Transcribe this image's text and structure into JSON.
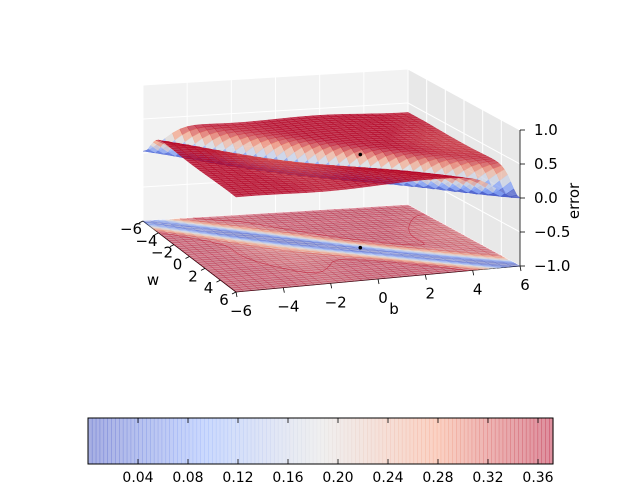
{
  "chart_data": {
    "type": "surface3d",
    "title": "",
    "xlabel": "w",
    "ylabel": "b",
    "zlabel": "error",
    "xlim": [
      -6,
      6
    ],
    "ylim": [
      -6,
      6
    ],
    "zlim": [
      -1.0,
      1.0
    ],
    "x_ticks": [
      "−6",
      "−4",
      "−2",
      "0",
      "2",
      "4",
      "6"
    ],
    "y_ticks": [
      "−6",
      "−4",
      "−2",
      "0",
      "2",
      "4",
      "6"
    ],
    "z_ticks": [
      "−1.0",
      "−0.5",
      "0.0",
      "0.5",
      "1.0"
    ],
    "surface_description": "error surface over w and b with a valley along w = b",
    "contour_offset_z": -1.0,
    "marked_point": {
      "w": 0.7,
      "b": 1.2,
      "error": 0.37
    },
    "colormap": "coolwarm",
    "alpha": 0.4,
    "colorbar": {
      "range": [
        0.0,
        0.372
      ],
      "ticks": [
        "0.04",
        "0.08",
        "0.12",
        "0.16",
        "0.20",
        "0.24",
        "0.28",
        "0.32",
        "0.36"
      ],
      "tick_values": [
        0.04,
        0.08,
        0.12,
        0.16,
        0.2,
        0.24,
        0.28,
        0.32,
        0.36
      ]
    }
  }
}
